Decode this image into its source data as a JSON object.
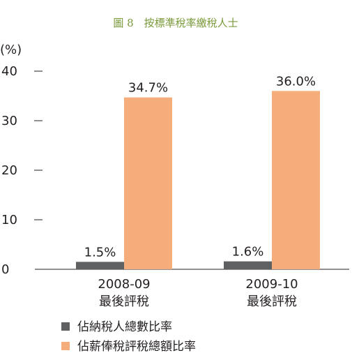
{
  "chart_data": {
    "type": "bar",
    "title": "圖 8　按標準稅率繳稅人士",
    "unit_label": "(%)",
    "yticks": [
      0,
      10,
      20,
      30,
      40
    ],
    "ylim": [
      0,
      40
    ],
    "categories": [
      {
        "line1": "2008-09",
        "line2": "最後評稅"
      },
      {
        "line1": "2009-10",
        "line2": "最後評稅"
      }
    ],
    "series": [
      {
        "name": "佔納稅人總數比率",
        "color": "#5f6062",
        "values": [
          1.5,
          1.6
        ],
        "labels": [
          "1.5%",
          "1.6%"
        ]
      },
      {
        "name": "佔薪俸稅評稅總額比率",
        "color": "#f5ae7b",
        "values": [
          34.7,
          36.0
        ],
        "labels": [
          "34.7%",
          "36.0%"
        ]
      }
    ],
    "grid": false,
    "legend_position": "bottom-left"
  }
}
